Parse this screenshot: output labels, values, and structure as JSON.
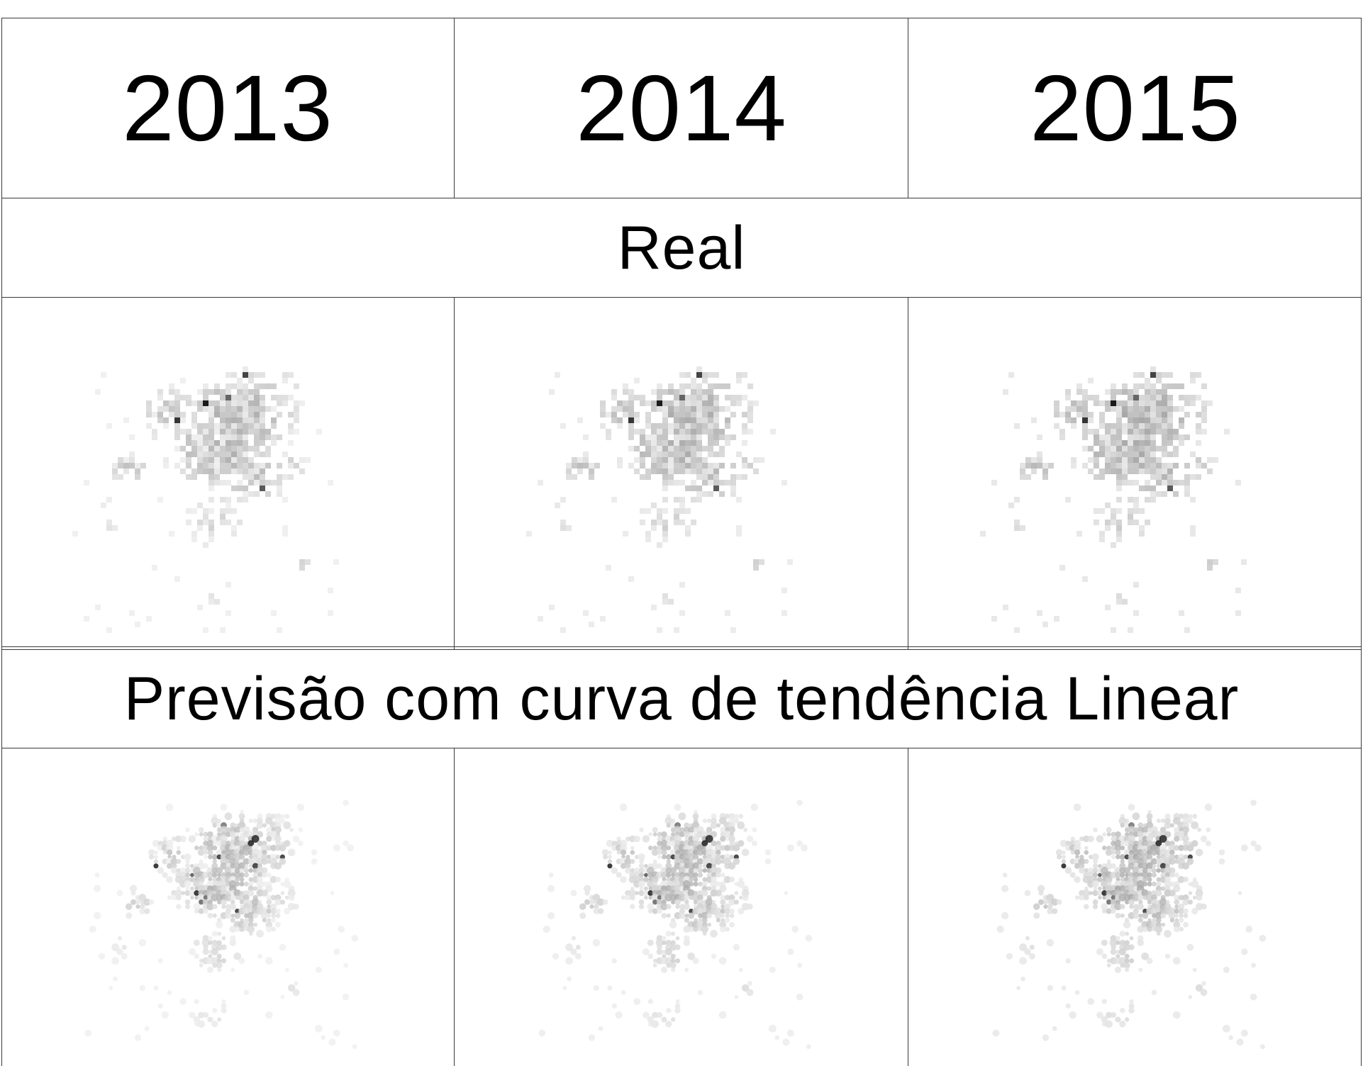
{
  "header": {
    "years": [
      "2013",
      "2014",
      "2015"
    ]
  },
  "sections": [
    {
      "title": "Real",
      "style": "pixel-grid"
    },
    {
      "title": "Previsão com curva de tendência Linear",
      "style": "smooth-blobs"
    }
  ],
  "colors": {
    "border": "#3a3a3a",
    "background": "#ffffff",
    "map_light": "#e6e6e6",
    "map_dark": "#111111"
  }
}
